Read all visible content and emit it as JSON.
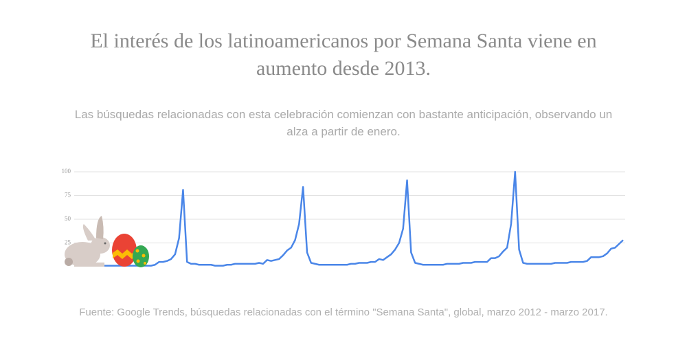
{
  "chart_data": {
    "type": "line",
    "title": "El interés de los latinoamericanos por Semana Santa viene en aumento desde 2013.",
    "subtitle": "Las búsquedas relacionadas con esta celebración comienzan con bastante anticipación, observando un alza a partir de enero.",
    "source": "Fuente: Google Trends, búsquedas relacionadas con el término \"Semana Santa\", global, marzo 2012 - marzo 2017.",
    "color": "#4a86e8",
    "ylim": [
      0,
      100
    ],
    "yticks": [
      25,
      50,
      75,
      100
    ],
    "grid": true,
    "values": [
      1,
      1,
      1,
      1,
      1,
      1,
      1,
      1,
      1,
      1,
      1,
      1,
      1,
      2,
      5,
      5,
      6,
      8,
      13,
      30,
      81,
      5,
      3,
      3,
      2,
      2,
      2,
      2,
      1,
      1,
      1,
      2,
      2,
      3,
      3,
      3,
      3,
      3,
      3,
      4,
      3,
      7,
      6,
      7,
      8,
      12,
      17,
      20,
      28,
      45,
      84,
      15,
      4,
      3,
      2,
      2,
      2,
      2,
      2,
      2,
      2,
      2,
      3,
      3,
      4,
      4,
      4,
      5,
      5,
      8,
      7,
      10,
      13,
      18,
      25,
      40,
      91,
      15,
      4,
      3,
      2,
      2,
      2,
      2,
      2,
      2,
      3,
      3,
      3,
      3,
      4,
      4,
      4,
      5,
      5,
      5,
      5,
      9,
      9,
      11,
      16,
      20,
      45,
      100,
      18,
      4,
      3,
      3,
      3,
      3,
      3,
      3,
      3,
      4,
      4,
      4,
      4,
      5,
      5,
      5,
      5,
      6,
      10,
      10,
      10,
      11,
      14,
      19,
      20,
      24,
      28
    ]
  }
}
